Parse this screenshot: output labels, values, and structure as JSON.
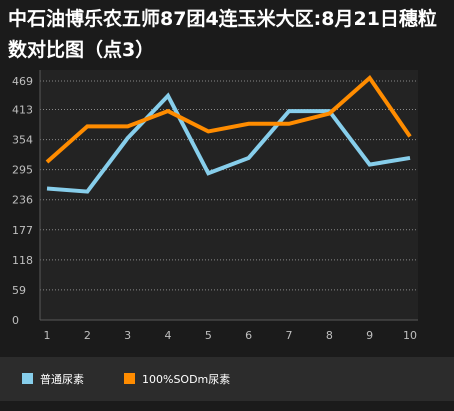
{
  "chart_data": {
    "type": "line",
    "title": "中石油博乐农五师87团4连玉米大区:8月21日穗粒数对比图（点3）",
    "categories": [
      "1",
      "2",
      "3",
      "4",
      "5",
      "6",
      "7",
      "8",
      "9",
      "10"
    ],
    "ylim": [
      0,
      469
    ],
    "yticks": [
      "0",
      "59",
      "118",
      "177",
      "236",
      "295",
      "354",
      "413",
      "469"
    ],
    "ytick_values": [
      0,
      59,
      118,
      177,
      236,
      295,
      354,
      413,
      469
    ],
    "grid": true,
    "legend_position": "bottom-left",
    "series": [
      {
        "name": "普通尿素",
        "color": "#87ceeb",
        "values": [
          258,
          252,
          357,
          440,
          288,
          318,
          410,
          410,
          305,
          318
        ]
      },
      {
        "name": "100%SODm尿素",
        "color": "#ff8c00",
        "values": [
          310,
          380,
          380,
          410,
          370,
          385,
          385,
          405,
          475,
          360
        ]
      }
    ]
  }
}
